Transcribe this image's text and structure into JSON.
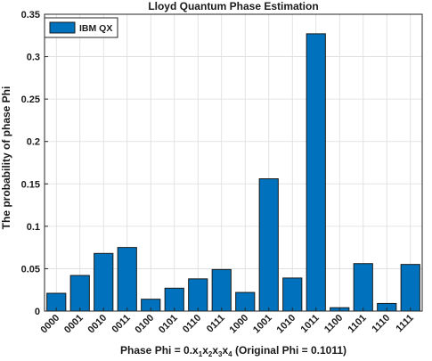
{
  "chart_data": {
    "type": "bar",
    "title": "Lloyd Quantum Phase Estimation",
    "ylabel": "The probability of phase Phi",
    "xlabel": {
      "prefix": "Phase Phi = 0.x",
      "parts": [
        {
          "base": "x",
          "sub": "1"
        },
        {
          "base": "x",
          "sub": "2"
        },
        {
          "base": "x",
          "sub": "3"
        },
        {
          "base": "x",
          "sub": "4"
        }
      ],
      "suffix": " (Original Phi = 0.1011)"
    },
    "categories": [
      "0000",
      "0001",
      "0010",
      "0011",
      "0100",
      "0101",
      "0110",
      "0111",
      "1000",
      "1001",
      "1010",
      "1011",
      "1100",
      "1101",
      "1110",
      "1111"
    ],
    "series": [
      {
        "name": "IBM QX",
        "color": "#0072BD",
        "values": [
          0.021,
          0.042,
          0.068,
          0.075,
          0.014,
          0.027,
          0.038,
          0.049,
          0.022,
          0.156,
          0.039,
          0.327,
          0.004,
          0.056,
          0.009,
          0.055
        ]
      }
    ],
    "ylim": [
      0,
      0.35
    ],
    "yticks": [
      "0",
      "0.05",
      "0.1",
      "0.15",
      "0.2",
      "0.25",
      "0.3",
      "0.35"
    ],
    "ytick_values": [
      0,
      0.05,
      0.1,
      0.15,
      0.2,
      0.25,
      0.3,
      0.35
    ],
    "grid": true,
    "legend_position": "top-left"
  }
}
